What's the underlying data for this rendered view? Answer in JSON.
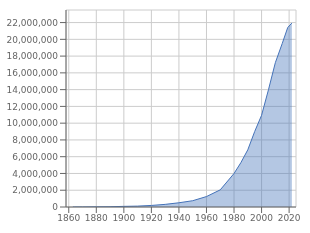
{
  "chart_data": {
    "type": "area",
    "x": [
      1863,
      1864,
      1870,
      1880,
      1890,
      1900,
      1910,
      1920,
      1930,
      1940,
      1950,
      1960,
      1970,
      1980,
      1985,
      1990,
      1995,
      2000,
      2005,
      2010,
      2015,
      2019,
      2022
    ],
    "values": [
      3500,
      3500,
      5440,
      15570,
      29711,
      75767,
      104539,
      185450,
      314253,
      504752,
      750158,
      1245125,
      2047004,
      3996000,
      5299000,
      6820000,
      9000000,
      10939000,
      13986000,
      17215000,
      19502000,
      21414000,
      21945000
    ],
    "color": "#4472b8",
    "xlim": [
      1858,
      2025
    ],
    "ylim": [
      0,
      23500000
    ],
    "xticks": [
      1860,
      1880,
      1900,
      1920,
      1940,
      1960,
      1980,
      2000,
      2020
    ],
    "yticks": [
      0,
      {
        "value": 2000000,
        "label": "2,000,000"
      },
      {
        "value": 4000000,
        "label": "4,000,000"
      },
      {
        "value": 6000000,
        "label": "6,000,000"
      },
      {
        "value": 8000000,
        "label": "8,000,000"
      },
      {
        "value": 10000000,
        "label": "10,000,000"
      },
      {
        "value": 12000000,
        "label": "12,000,000"
      },
      {
        "value": 14000000,
        "label": "14,000,000"
      },
      {
        "value": 16000000,
        "label": "16,000,000"
      },
      {
        "value": 18000000,
        "label": "18,000,000"
      },
      {
        "value": 20000000,
        "label": "20,000,000"
      },
      {
        "value": 22000000,
        "label": "22,000,000"
      }
    ],
    "grid": true
  }
}
